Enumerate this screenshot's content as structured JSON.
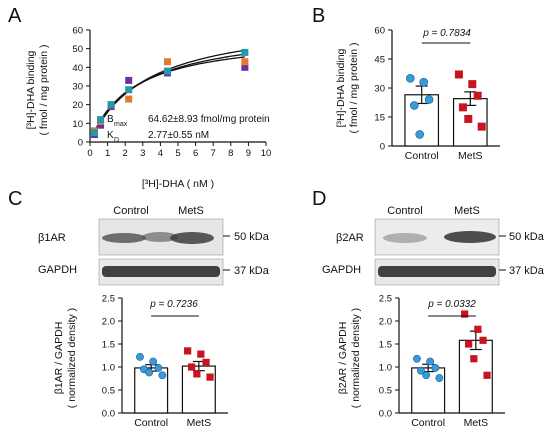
{
  "panelA": {
    "letter": "A",
    "ylabel_line1": "[³H]-DHA binding",
    "ylabel_line2": "( fmol / mg protein )",
    "xlabel": "[³H]-DHA ( nM )",
    "bmax_label": "B",
    "bmax_sub": "max",
    "bmax_value": "64.62±8.93 fmol/mg protein",
    "kd_label": "K",
    "kd_sub": "D",
    "kd_value": "2.77±0.55 nM",
    "xticks": [
      "0",
      "1",
      "2",
      "3",
      "4",
      "5",
      "6",
      "7",
      "8",
      "9",
      "10"
    ],
    "yticks": [
      "0",
      "10",
      "20",
      "30",
      "40",
      "50",
      "60"
    ],
    "colors": {
      "purple": "#6b2fa0",
      "orange": "#e07a2e",
      "teal": "#1f9aa8"
    }
  },
  "panelB": {
    "letter": "B",
    "ylabel_line1": "[³H]-DHA binding",
    "ylabel_line2": "( fmol / mg protein )",
    "pvalue": "p = 0.7834",
    "yticks": [
      "0",
      "15",
      "30",
      "45",
      "60"
    ],
    "groups": [
      "Control",
      "MetS"
    ]
  },
  "panelC": {
    "letter": "C",
    "blot_header": [
      "Control",
      "MetS"
    ],
    "row1_label": "β1AR",
    "row1_kda": "50 kDa",
    "row2_label": "GAPDH",
    "row2_kda": "37 kDa",
    "ylabel_line1": "β1AR / GAPDH",
    "ylabel_line2": "( normalized density )",
    "pvalue": "p = 0.7236",
    "yticks": [
      "0.0",
      "0.5",
      "1.0",
      "1.5",
      "2.0",
      "2.5"
    ],
    "groups": [
      "Control",
      "MetS"
    ]
  },
  "panelD": {
    "letter": "D",
    "blot_header": [
      "Control",
      "MetS"
    ],
    "row1_label": "β2AR",
    "row1_kda": "50 kDa",
    "row2_label": "GAPDH",
    "row2_kda": "37 kDa",
    "ylabel_line1": "β2AR / GAPDH",
    "ylabel_line2": "( normalized density )",
    "pvalue": "p = 0.0332",
    "yticks": [
      "0.0",
      "0.5",
      "1.0",
      "1.5",
      "2.0",
      "2.5"
    ],
    "groups": [
      "Control",
      "MetS"
    ]
  },
  "colors": {
    "control": "#3a9ad9",
    "mets": "#c8141e"
  },
  "chart_data": [
    {
      "type": "scatter",
      "title": "",
      "xlabel": "[³H]-DHA ( nM )",
      "ylabel": "[³H]-DHA binding ( fmol / mg protein )",
      "xlim": [
        0,
        10
      ],
      "ylim": [
        0,
        60
      ],
      "series": [
        {
          "color": "#6b2fa0",
          "x": [
            0.25,
            0.6,
            1.2,
            2.2,
            4.4,
            8.8
          ],
          "y": [
            4,
            9,
            19,
            33,
            37,
            40
          ]
        },
        {
          "color": "#e07a2e",
          "x": [
            0.25,
            0.6,
            1.2,
            2.2,
            4.4,
            8.8
          ],
          "y": [
            6,
            11,
            20,
            23,
            43,
            43
          ]
        },
        {
          "color": "#1f9aa8",
          "x": [
            0.25,
            0.6,
            1.2,
            2.2,
            4.4,
            8.8
          ],
          "y": [
            5,
            12,
            20,
            28,
            38,
            48
          ]
        }
      ],
      "fit_curves": [
        {
          "bmax": 58,
          "kd": 2.4
        },
        {
          "bmax": 62,
          "kd": 2.8
        },
        {
          "bmax": 67,
          "kd": 3.2
        }
      ]
    },
    {
      "type": "bar",
      "categories": [
        "Control",
        "MetS"
      ],
      "values": [
        26.5,
        24.5
      ],
      "sem": [
        4.5,
        3.5
      ],
      "points": [
        [
          35,
          33,
          24,
          21,
          6
        ],
        [
          37,
          32,
          26,
          20,
          14,
          10
        ]
      ],
      "ylim": [
        0,
        60
      ],
      "ylabel": "[³H]-DHA binding ( fmol / mg protein )",
      "annotation": "p = 0.7834"
    },
    {
      "type": "bar",
      "categories": [
        "Control",
        "MetS"
      ],
      "values": [
        0.98,
        1.02
      ],
      "sem": [
        0.07,
        0.1
      ],
      "points": [
        [
          1.22,
          1.12,
          0.98,
          0.95,
          0.88,
          0.82
        ],
        [
          1.35,
          1.28,
          1.1,
          1.0,
          0.85,
          0.78
        ]
      ],
      "ylim": [
        0,
        2.5
      ],
      "ylabel": "β1AR / GAPDH ( normalized density )",
      "annotation": "p = 0.7236"
    },
    {
      "type": "bar",
      "categories": [
        "Control",
        "MetS"
      ],
      "values": [
        0.98,
        1.58
      ],
      "sem": [
        0.08,
        0.2
      ],
      "points": [
        [
          1.18,
          1.12,
          0.98,
          0.92,
          0.82,
          0.76
        ],
        [
          2.15,
          1.82,
          1.58,
          1.5,
          1.18,
          0.82
        ]
      ],
      "ylim": [
        0,
        2.5
      ],
      "ylabel": "β2AR / GAPDH ( normalized density )",
      "annotation": "p = 0.0332"
    }
  ]
}
